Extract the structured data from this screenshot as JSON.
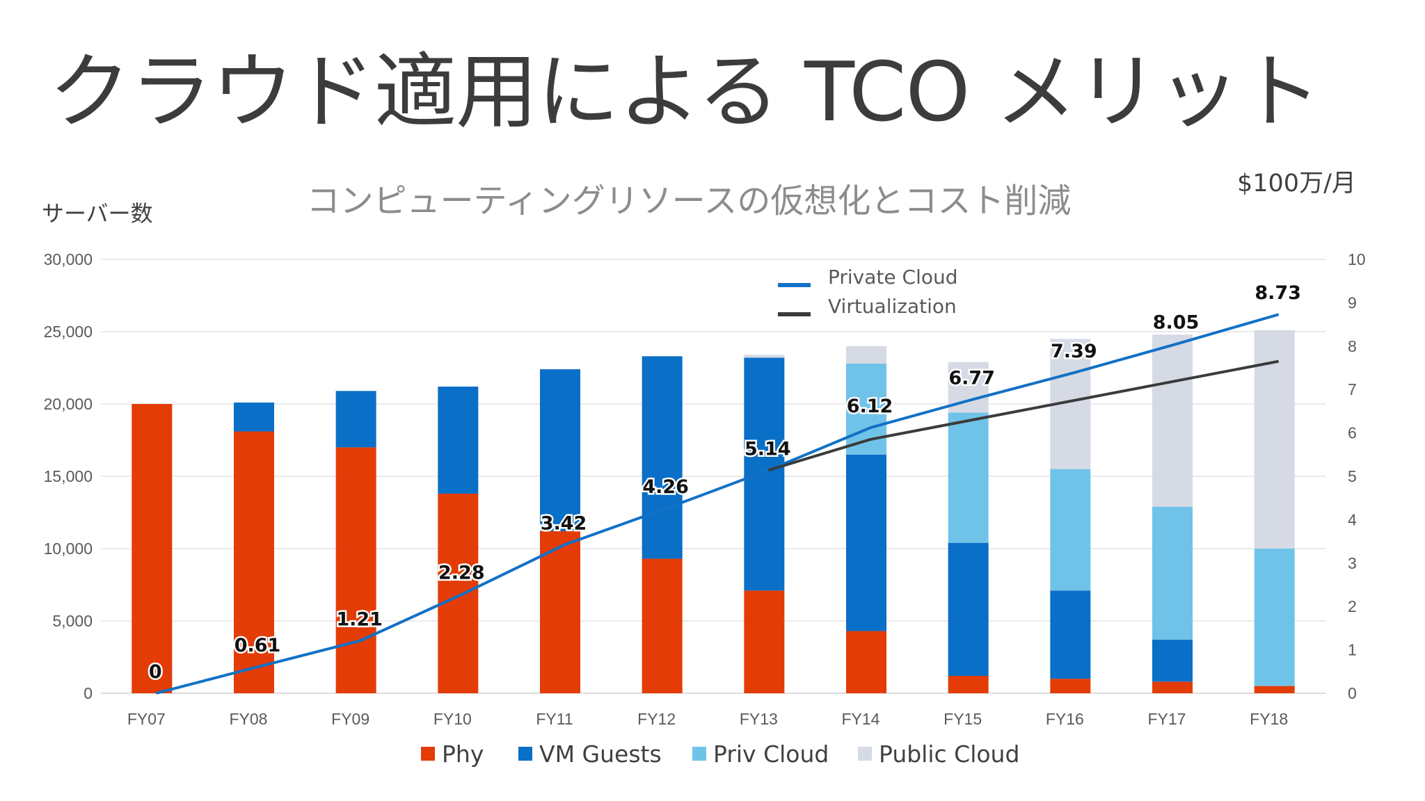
{
  "slide": {
    "title": "クラウド適用による TCO メリット"
  },
  "chart_data": {
    "type": "bar",
    "title": "コンピューティングリソースの仮想化とコスト削減",
    "y_left_label": "サーバー数",
    "y_right_label": "$100万/月",
    "categories": [
      "FY07",
      "FY08",
      "FY09",
      "FY10",
      "FY11",
      "FY12",
      "FY13",
      "FY14",
      "FY15",
      "FY16",
      "FY17",
      "FY18"
    ],
    "ylim_left": [
      0,
      30000
    ],
    "yticks_left": [
      "0",
      "5,000",
      "10,000",
      "15,000",
      "20,000",
      "25,000",
      "30,000"
    ],
    "ylim_right": [
      0,
      10
    ],
    "yticks_right": [
      "0",
      "1",
      "2",
      "3",
      "4",
      "5",
      "6",
      "7",
      "8",
      "9",
      "10"
    ],
    "grid": true,
    "series": [
      {
        "name": "Phy",
        "kind": "stacked-bar",
        "color": "#E33C06",
        "values": [
          20000,
          18100,
          17000,
          13800,
          11200,
          9300,
          7100,
          4300,
          1200,
          1000,
          800,
          500
        ]
      },
      {
        "name": "VM Guests",
        "kind": "stacked-bar",
        "color": "#0A6FC7",
        "values": [
          0,
          2000,
          3900,
          7400,
          11200,
          14000,
          16100,
          12200,
          9200,
          6100,
          2900,
          0
        ]
      },
      {
        "name": "Priv Cloud",
        "kind": "stacked-bar",
        "color": "#70C3E8",
        "values": [
          0,
          0,
          0,
          0,
          0,
          0,
          0,
          6300,
          9000,
          8400,
          9200,
          9500
        ]
      },
      {
        "name": "Public Cloud",
        "kind": "stacked-bar",
        "color": "#D5DAE5",
        "values": [
          0,
          0,
          0,
          0,
          0,
          0,
          200,
          1200,
          3500,
          9000,
          11900,
          15100
        ]
      },
      {
        "name": "Private Cloud",
        "kind": "line",
        "axis": "right",
        "color": "#1271C6",
        "values": [
          0,
          0.61,
          1.21,
          2.28,
          3.42,
          4.26,
          5.14,
          6.12,
          6.77,
          7.39,
          8.05,
          8.73
        ],
        "labels": [
          "0",
          "0.61",
          "1.21",
          "2.28",
          "3.42",
          "4.26",
          "5.14",
          "6.12",
          "6.77",
          "7.39",
          "8.05",
          "8.73"
        ]
      },
      {
        "name": "Virtualization",
        "kind": "line",
        "axis": "right",
        "color": "#3b3b3b",
        "values": [
          null,
          null,
          null,
          null,
          null,
          null,
          5.14,
          5.85,
          6.3,
          6.75,
          7.2,
          7.65
        ]
      }
    ],
    "legend_bottom": [
      "Phy",
      "VM Guests",
      "Priv Cloud",
      "Public Cloud"
    ],
    "legend_inset": [
      "Private Cloud",
      "Virtualization"
    ]
  }
}
